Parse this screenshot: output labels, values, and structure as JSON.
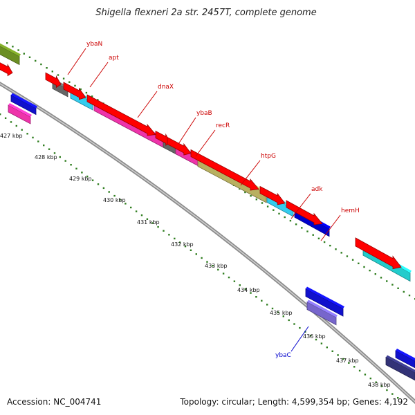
{
  "title": "Shigella flexneri 2a str. 2457T, complete genome",
  "footer": {
    "accession": "Accession: NC_004741",
    "summary": "Topology: circular; Length: 4,599,354 bp; Genes: 4,192"
  },
  "colors": {
    "backbone": "#8c8c8c",
    "tick_dots": "#2e7d1e",
    "cds_strand": "#ff0000",
    "forward_label": "#cc0000",
    "reverse_label": "#0000cc"
  },
  "ticks": [
    {
      "label": "427 kbp"
    },
    {
      "label": "428 kbp"
    },
    {
      "label": "429 kbp"
    },
    {
      "label": "430 kbp"
    },
    {
      "label": "431 kbp"
    },
    {
      "label": "432 kbp"
    },
    {
      "label": "433 kbp"
    },
    {
      "label": "434 kbp"
    },
    {
      "label": "435 kbp"
    },
    {
      "label": "436 kbp"
    },
    {
      "label": "437 kbp"
    },
    {
      "label": "438 kbp"
    }
  ],
  "gene_labels": [
    {
      "name": "ybaN",
      "strand": "forward"
    },
    {
      "name": "apt",
      "strand": "forward"
    },
    {
      "name": "dnaX",
      "strand": "forward"
    },
    {
      "name": "ybaB",
      "strand": "forward"
    },
    {
      "name": "recR",
      "strand": "forward"
    },
    {
      "name": "htpG",
      "strand": "forward"
    },
    {
      "name": "adk",
      "strand": "forward"
    },
    {
      "name": "hemH",
      "strand": "forward"
    },
    {
      "name": "ybaC",
      "strand": "reverse"
    }
  ],
  "features": [
    {
      "name": "outer-olive-block",
      "color": "#6b8e23"
    },
    {
      "name": "ybaN-gray-block",
      "color": "#666666"
    },
    {
      "name": "apt-cyan-block",
      "color": "#33ccee"
    },
    {
      "name": "dnaX-magenta-block",
      "color": "#ee33aa"
    },
    {
      "name": "ybaB-gray-block",
      "color": "#666666"
    },
    {
      "name": "recR-magenta-block",
      "color": "#ee33aa"
    },
    {
      "name": "htpG-khaki-block",
      "color": "#b8b060"
    },
    {
      "name": "adk-cyan-block",
      "color": "#33ccee"
    },
    {
      "name": "hemH-blue-block",
      "color": "#0000cc"
    },
    {
      "name": "teal-block",
      "color": "#22cccc"
    },
    {
      "name": "inner-blue-block",
      "color": "#1111cc"
    },
    {
      "name": "inner-magenta-block",
      "color": "#ee33aa"
    },
    {
      "name": "ybaC-blue-block",
      "color": "#1111cc"
    },
    {
      "name": "ybaC-purple-block",
      "color": "#7766cc"
    },
    {
      "name": "navy-block",
      "color": "#333377"
    },
    {
      "name": "edge-blue-block",
      "color": "#1111cc"
    }
  ]
}
